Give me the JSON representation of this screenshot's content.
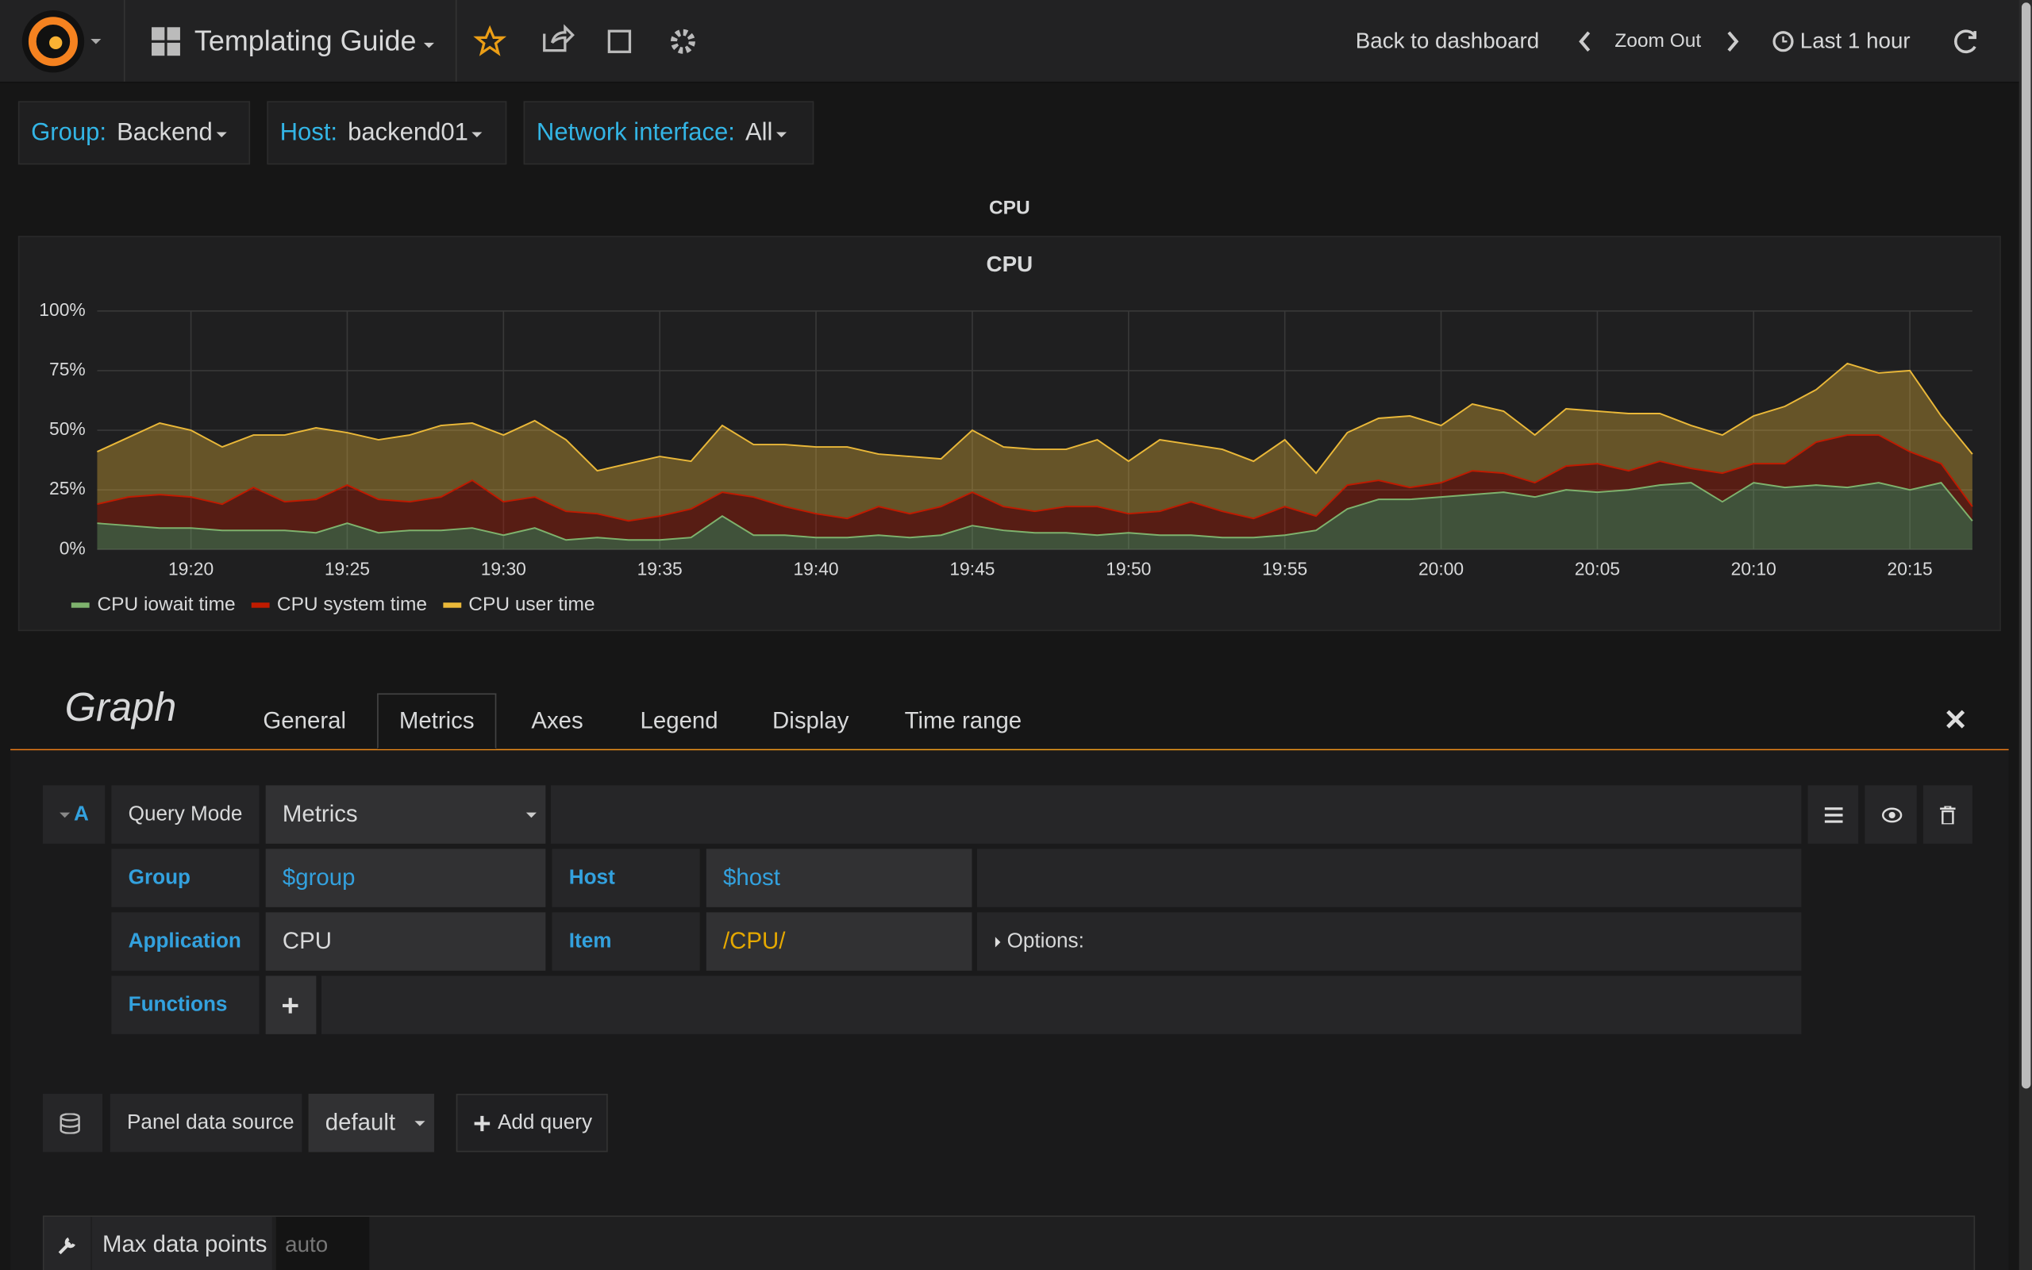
{
  "navbar": {
    "title": "Templating Guide",
    "back": "Back to dashboard",
    "zoom": "Zoom Out",
    "time_range": "Last 1 hour"
  },
  "variables": [
    {
      "label": "Group:",
      "value": "Backend"
    },
    {
      "label": "Host:",
      "value": "backend01"
    },
    {
      "label": "Network interface:",
      "value": "All"
    }
  ],
  "row_title": "CPU",
  "chart_data": {
    "type": "stacked-area",
    "title": "CPU",
    "x": [
      "19:17",
      "19:18",
      "19:19",
      "19:20",
      "19:21",
      "19:22",
      "19:23",
      "19:24",
      "19:25",
      "19:26",
      "19:27",
      "19:28",
      "19:29",
      "19:30",
      "19:31",
      "19:32",
      "19:33",
      "19:34",
      "19:35",
      "19:36",
      "19:37",
      "19:38",
      "19:39",
      "19:40",
      "19:41",
      "19:42",
      "19:43",
      "19:44",
      "19:45",
      "19:46",
      "19:47",
      "19:48",
      "19:49",
      "19:50",
      "19:51",
      "19:52",
      "19:53",
      "19:54",
      "19:55",
      "19:56",
      "19:57",
      "19:58",
      "19:59",
      "20:00",
      "20:01",
      "20:02",
      "20:03",
      "20:04",
      "20:05",
      "20:06",
      "20:07",
      "20:08",
      "20:09",
      "20:10",
      "20:11",
      "20:12",
      "20:13",
      "20:14",
      "20:15",
      "20:16",
      "20:17"
    ],
    "xticks": [
      "19:20",
      "19:25",
      "19:30",
      "19:35",
      "19:40",
      "19:45",
      "19:50",
      "19:55",
      "20:00",
      "20:05",
      "20:10",
      "20:15"
    ],
    "series": [
      {
        "name": "CPU iowait time",
        "color": "#7eb26d",
        "values": [
          11,
          10,
          9,
          9,
          8,
          8,
          8,
          7,
          11,
          7,
          8,
          8,
          9,
          6,
          9,
          4,
          5,
          4,
          4,
          5,
          14,
          6,
          6,
          5,
          5,
          6,
          5,
          6,
          10,
          8,
          7,
          7,
          6,
          7,
          6,
          6,
          5,
          5,
          6,
          8,
          17,
          21,
          21,
          22,
          23,
          24,
          22,
          25,
          24,
          25,
          27,
          28,
          20,
          28,
          26,
          27,
          26,
          28,
          25,
          28,
          12
        ]
      },
      {
        "name": "CPU system time",
        "color": "#bf1b00",
        "values": [
          8,
          12,
          14,
          13,
          11,
          18,
          12,
          14,
          16,
          14,
          12,
          14,
          20,
          14,
          13,
          12,
          10,
          8,
          10,
          12,
          10,
          16,
          12,
          10,
          8,
          12,
          10,
          12,
          14,
          10,
          9,
          11,
          12,
          8,
          10,
          14,
          11,
          8,
          12,
          6,
          10,
          8,
          5,
          6,
          10,
          8,
          6,
          10,
          12,
          8,
          10,
          6,
          12,
          8,
          10,
          18,
          22,
          20,
          16,
          8,
          6
        ]
      },
      {
        "name": "CPU user time",
        "color": "#eab839",
        "values": [
          22,
          25,
          30,
          28,
          24,
          22,
          28,
          30,
          22,
          25,
          28,
          30,
          24,
          28,
          32,
          30,
          18,
          24,
          25,
          20,
          28,
          22,
          26,
          28,
          30,
          22,
          24,
          20,
          26,
          25,
          26,
          24,
          28,
          22,
          30,
          24,
          26,
          24,
          28,
          18,
          22,
          26,
          30,
          24,
          28,
          26,
          20,
          24,
          22,
          24,
          20,
          18,
          16,
          20,
          24,
          22,
          30,
          26,
          34,
          20,
          22
        ]
      }
    ],
    "ylim": [
      0,
      100
    ],
    "yticks": [
      {
        "value": 0,
        "label": "0%"
      },
      {
        "value": 25,
        "label": "25%"
      },
      {
        "value": 50,
        "label": "50%"
      },
      {
        "value": 75,
        "label": "75%"
      },
      {
        "value": 100,
        "label": "100%"
      }
    ],
    "grid": true,
    "stacked": true,
    "legend": "bottom-left"
  },
  "editor": {
    "title": "Graph",
    "tabs": [
      "General",
      "Metrics",
      "Axes",
      "Legend",
      "Display",
      "Time range"
    ],
    "active_tab": 1
  },
  "query": {
    "ref": "A",
    "query_mode_label": "Query Mode",
    "query_mode": "Metrics",
    "group_label": "Group",
    "group": "$group",
    "host_label": "Host",
    "host": "$host",
    "application_label": "Application",
    "application": "CPU",
    "item_label": "Item",
    "item": "/CPU/",
    "options": "Options:",
    "functions_label": "Functions"
  },
  "datasource": {
    "label": "Panel data source",
    "value": "default",
    "add_query": "Add query"
  },
  "max_data_points": {
    "label": "Max data points",
    "placeholder": "auto"
  }
}
